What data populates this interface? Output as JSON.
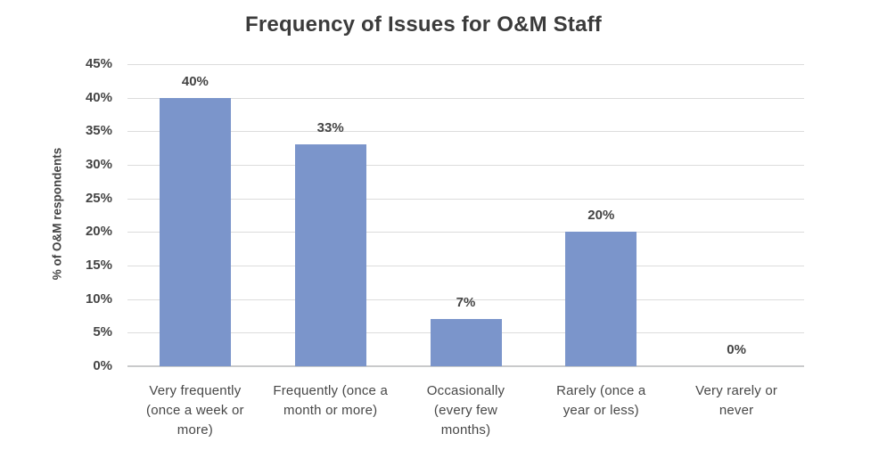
{
  "chart_data": {
    "type": "bar",
    "title": "Frequency of Issues for O&M Staff",
    "ylabel": "% of O&M respondents",
    "xlabel": "",
    "categories": [
      "Very frequently\n(once a week or\nmore)",
      "Frequently (once a\nmonth or more)",
      "Occasionally\n(every few\nmonths)",
      "Rarely (once a\nyear or less)",
      "Very rarely or\nnever"
    ],
    "values": [
      40,
      33,
      7,
      20,
      0
    ],
    "value_labels": [
      "40%",
      "33%",
      "7%",
      "20%",
      "0%"
    ],
    "ylim": [
      0,
      45
    ],
    "ytick_step": 5,
    "ytick_labels": [
      "0%",
      "5%",
      "10%",
      "15%",
      "20%",
      "25%",
      "30%",
      "35%",
      "40%",
      "45%"
    ],
    "grid": true,
    "legend": false,
    "bar_color": "#7B95CB",
    "title_color": "#3B3B3B",
    "text_color": "#444444",
    "gridline_color": "#DCDCDC",
    "axis_line_color": "#C9CACB"
  }
}
